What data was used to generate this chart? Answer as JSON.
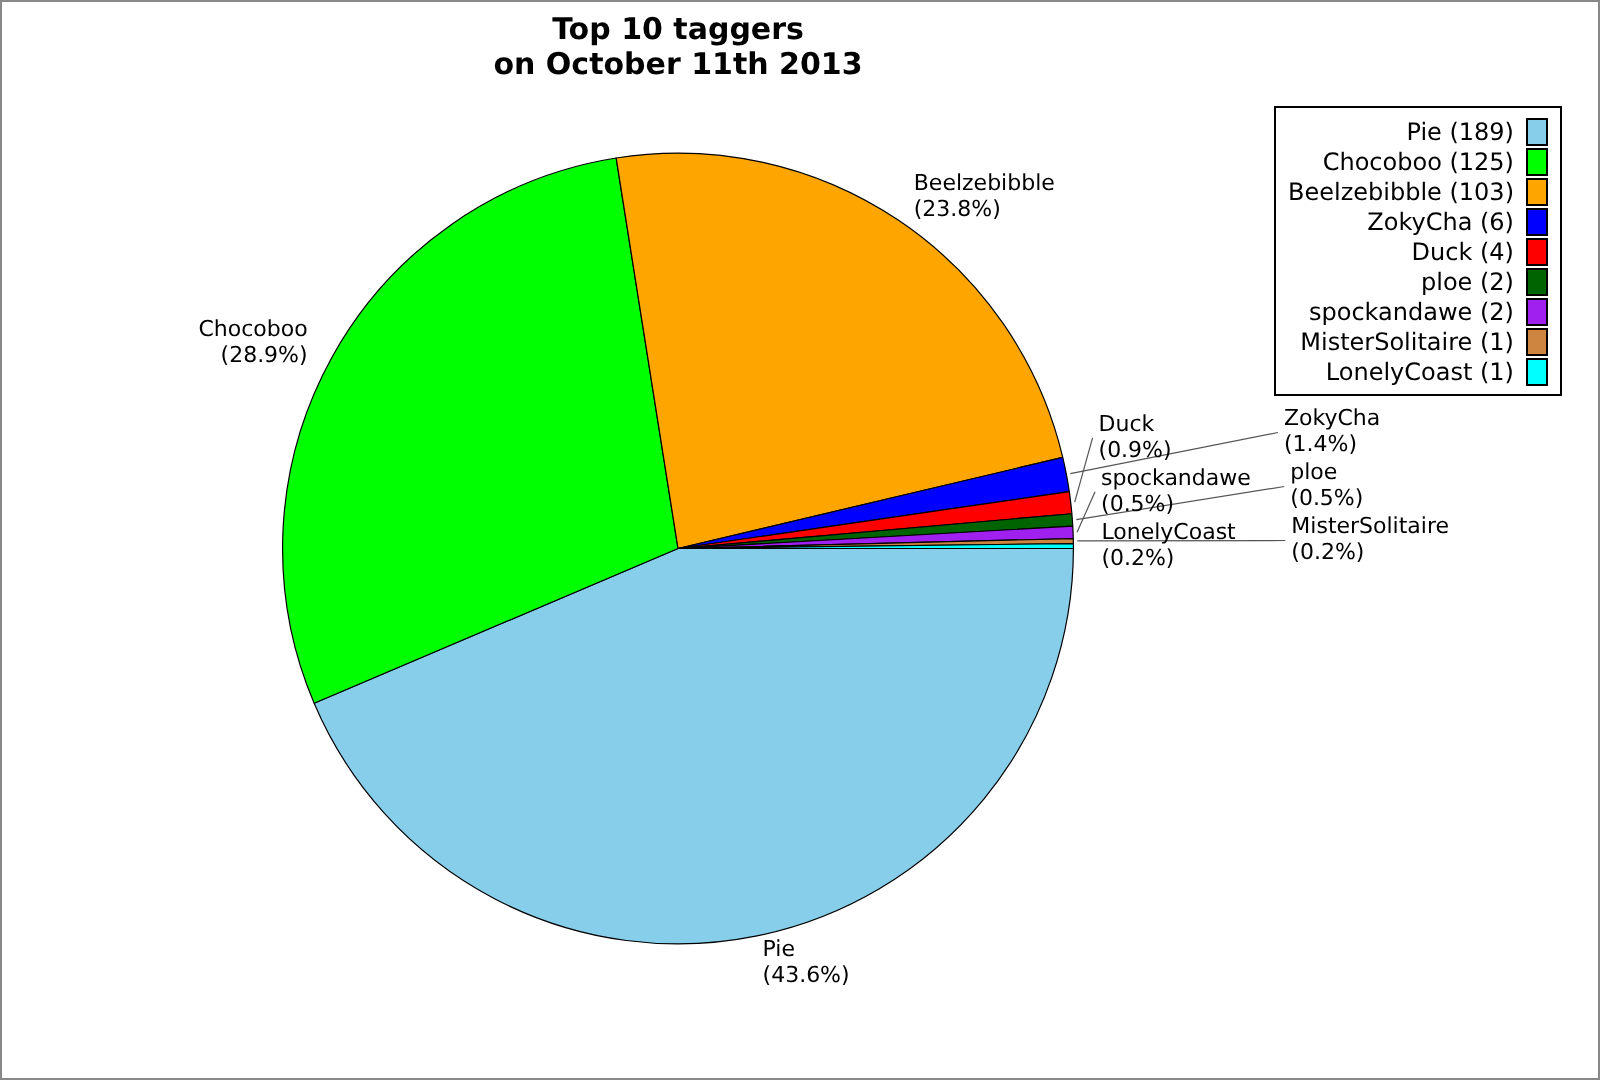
{
  "chart_data": {
    "type": "pie",
    "title": "Top 10 taggers\non October 11th 2013",
    "categories": [
      "Pie (189)",
      "Chocoboo (125)",
      "Beelzebibble (103)",
      "ZokyCha (6)",
      "Duck (4)",
      "ploe (2)",
      "spockandawe (2)",
      "MisterSolitaire (1)",
      "LonelyCoast (1)"
    ],
    "values": [
      43.6,
      28.9,
      23.8,
      1.4,
      0.9,
      0.5,
      0.5,
      0.2,
      0.2
    ],
    "value_labels": [
      "Pie\n(43.6%)",
      "Chocoboo\n(28.9%)",
      "Beelzebibble\n(23.8%)",
      "ZokyCha\n(1.4%)",
      "Duck\n(0.9%)",
      "ploe\n(0.5%)",
      "spockandawe\n(0.5%)",
      "MisterSolitaire\n(0.2%)",
      "LonelyCoast\n(0.2%)"
    ],
    "colors": [
      "#87ceeb",
      "#00ff00",
      "#ffa500",
      "#0000ff",
      "#ff0000",
      "#006400",
      "#a020f0",
      "#cd853f",
      "#00ffff"
    ],
    "legend": "top right"
  }
}
